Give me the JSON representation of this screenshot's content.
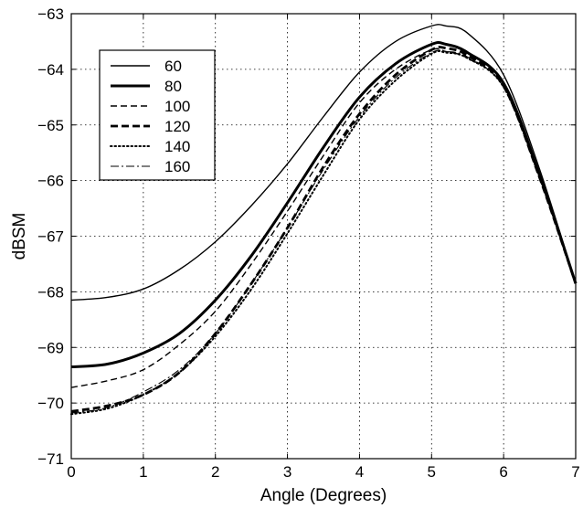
{
  "chart_data": {
    "type": "line",
    "title": "",
    "xlabel": "Angle (Degrees)",
    "ylabel": "dBSM",
    "xlim": [
      0,
      7
    ],
    "ylim": [
      -71,
      -63
    ],
    "xticks": [
      "0",
      "1",
      "2",
      "3",
      "4",
      "5",
      "6",
      "7"
    ],
    "yticks": [
      "−71",
      "−70",
      "−69",
      "−68",
      "−67",
      "−66",
      "−65",
      "−64",
      "−63"
    ],
    "grid": true,
    "legend_position": "top-left",
    "x": [
      0,
      0.5,
      1,
      1.5,
      2,
      2.5,
      3,
      3.5,
      4,
      4.5,
      5,
      5.2,
      5.5,
      6,
      6.5,
      7
    ],
    "series": [
      {
        "name": "60",
        "style": "solid",
        "values": [
          -68.15,
          -68.1,
          -67.95,
          -67.6,
          -67.1,
          -66.45,
          -65.7,
          -64.85,
          -64.05,
          -63.5,
          -63.22,
          -63.22,
          -63.35,
          -64.1,
          -65.8,
          -67.85
        ]
      },
      {
        "name": "80",
        "style": "solid-bold",
        "values": [
          -69.35,
          -69.3,
          -69.1,
          -68.75,
          -68.15,
          -67.35,
          -66.4,
          -65.4,
          -64.5,
          -63.9,
          -63.55,
          -63.55,
          -63.7,
          -64.25,
          -65.9,
          -67.85
        ]
      },
      {
        "name": "100",
        "style": "dashed",
        "values": [
          -69.72,
          -69.6,
          -69.4,
          -68.95,
          -68.35,
          -67.5,
          -66.55,
          -65.55,
          -64.6,
          -64.0,
          -63.65,
          -63.68,
          -63.8,
          -64.3,
          -65.95,
          -67.85
        ]
      },
      {
        "name": "120",
        "style": "dashed-bold",
        "values": [
          -70.15,
          -70.05,
          -69.85,
          -69.45,
          -68.75,
          -67.85,
          -66.85,
          -65.75,
          -64.8,
          -64.1,
          -63.65,
          -63.62,
          -63.75,
          -64.3,
          -65.95,
          -67.85
        ]
      },
      {
        "name": "140",
        "style": "dotted",
        "values": [
          -70.2,
          -70.1,
          -69.85,
          -69.45,
          -68.8,
          -67.95,
          -66.95,
          -65.9,
          -64.9,
          -64.2,
          -63.72,
          -63.7,
          -63.8,
          -64.32,
          -65.95,
          -67.85
        ]
      },
      {
        "name": "160",
        "style": "dash-dot",
        "values": [
          -70.18,
          -70.08,
          -69.8,
          -69.4,
          -68.75,
          -67.85,
          -66.85,
          -65.8,
          -64.85,
          -64.15,
          -63.7,
          -63.68,
          -63.78,
          -64.32,
          -65.95,
          -67.85
        ]
      }
    ]
  }
}
